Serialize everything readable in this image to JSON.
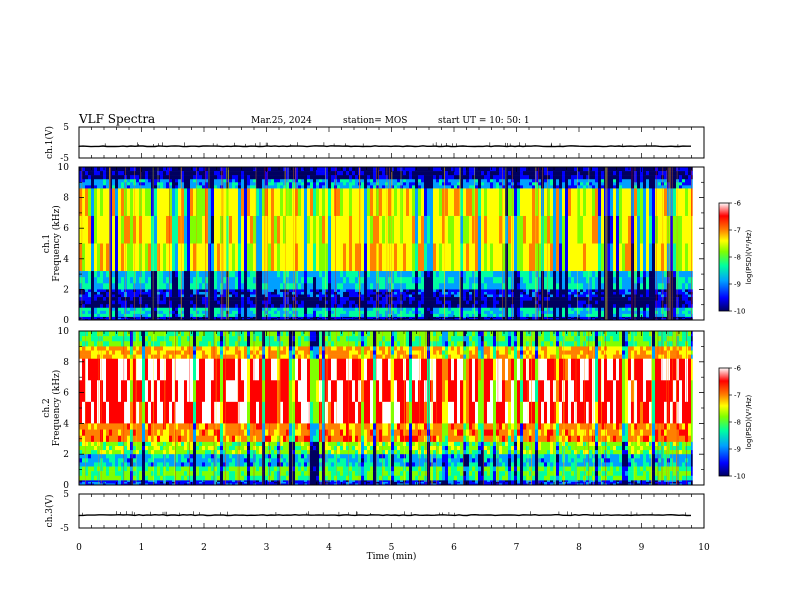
{
  "header": {
    "title": "VLF Spectra",
    "date": "Mar.25, 2024",
    "station": "station= MOS",
    "start": "start  UT =   10: 50: 1"
  },
  "colors": {
    "background": "#ffffff",
    "frame": "#000000",
    "colormap": [
      "#000060",
      "#0000ff",
      "#00a0ff",
      "#00ffa0",
      "#80ff00",
      "#ffff00",
      "#ff8000",
      "#ff0000",
      "#ffffff"
    ]
  },
  "chart_data": [
    {
      "type": "line",
      "panel": "ch1-waveform",
      "ylabel": "ch.1(V)",
      "ylim": [
        -5,
        5
      ],
      "yticks": [
        "5",
        "-5"
      ],
      "xlim": [
        0,
        10
      ],
      "baseline": -1.2
    },
    {
      "type": "heatmap",
      "panel": "ch1-spectrogram",
      "ylabel_top": "ch.1",
      "ylabel": "Frequency (kHz)",
      "ylim": [
        0,
        10
      ],
      "yticks": [
        "0",
        "2",
        "4",
        "6",
        "8",
        "10"
      ],
      "xlim": [
        0,
        10
      ],
      "colorbar": {
        "label": "log(PSD)(V²/Hz)",
        "range": [
          -10,
          -6
        ],
        "ticks": [
          "-6",
          "-7",
          "-8",
          "-9",
          "-10"
        ]
      },
      "bands": [
        {
          "fmin": 9.2,
          "fmax": 10,
          "level": 0.05
        },
        {
          "fmin": 8.6,
          "fmax": 9.2,
          "level": 0.25
        },
        {
          "fmin": 3.2,
          "fmax": 8.6,
          "level": 0.62
        },
        {
          "fmin": 2.0,
          "fmax": 3.2,
          "level": 0.3
        },
        {
          "fmin": 1.5,
          "fmax": 2.0,
          "level": 0.12
        },
        {
          "fmin": 0.8,
          "fmax": 1.5,
          "level": 0.04
        },
        {
          "fmin": 0.2,
          "fmax": 0.8,
          "level": 0.32
        },
        {
          "fmin": 0,
          "fmax": 0.2,
          "level": 0.08
        }
      ]
    },
    {
      "type": "heatmap",
      "panel": "ch2-spectrogram",
      "ylabel_top": "ch.2",
      "ylabel": "Frequency (kHz)",
      "ylim": [
        0,
        10
      ],
      "yticks": [
        "0",
        "2",
        "4",
        "6",
        "8",
        "10"
      ],
      "xlim": [
        0,
        10
      ],
      "colorbar": {
        "label": "log(PSD)(V²/Hz)",
        "range": [
          -10,
          -6
        ],
        "ticks": [
          "-6",
          "-7",
          "-8",
          "-9",
          "-10"
        ]
      },
      "bands": [
        {
          "fmin": 9.0,
          "fmax": 10,
          "level": 0.45
        },
        {
          "fmin": 8.2,
          "fmax": 9.0,
          "level": 0.7
        },
        {
          "fmin": 4.0,
          "fmax": 8.2,
          "level": 0.92
        },
        {
          "fmin": 2.8,
          "fmax": 4.0,
          "level": 0.75
        },
        {
          "fmin": 2.0,
          "fmax": 2.8,
          "level": 0.5
        },
        {
          "fmin": 1.2,
          "fmax": 2.0,
          "level": 0.28
        },
        {
          "fmin": 0.3,
          "fmax": 1.2,
          "level": 0.45
        },
        {
          "fmin": 0,
          "fmax": 0.3,
          "level": 0.15
        }
      ]
    },
    {
      "type": "line",
      "panel": "ch3-waveform",
      "ylabel": "ch.3(V)",
      "ylim": [
        -5,
        5
      ],
      "yticks": [
        "5",
        "-5"
      ],
      "xlim": [
        0,
        10
      ],
      "baseline": -1.2
    }
  ],
  "xaxis": {
    "label": "Time  (min)",
    "ticks": [
      "0",
      "1",
      "2",
      "3",
      "4",
      "5",
      "6",
      "7",
      "8",
      "9",
      "10"
    ],
    "data_end": 9.82
  }
}
